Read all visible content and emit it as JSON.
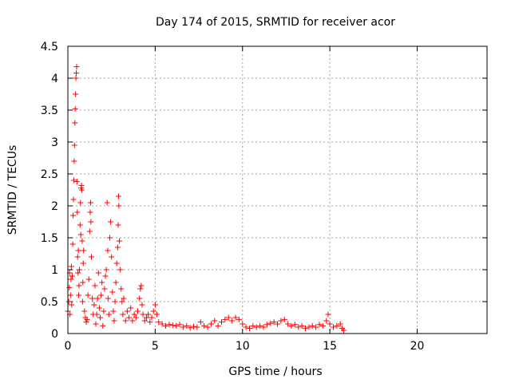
{
  "chart_data": {
    "type": "scatter",
    "title": "Day 174 of 2015, SRMTID for receiver acor",
    "xlabel": "GPS time / hours",
    "ylabel": "SRMTID / TECUs",
    "xlim": [
      0,
      24
    ],
    "ylim": [
      0,
      4.5
    ],
    "xticks": [
      0,
      5,
      10,
      15,
      20
    ],
    "xtick_labels": [
      "0",
      "5",
      "10",
      "15",
      "20"
    ],
    "yticks": [
      0,
      0.5,
      1,
      1.5,
      2,
      2.5,
      3,
      3.5,
      4,
      4.5
    ],
    "ytick_labels": [
      "0",
      "0.5",
      "1",
      "1.5",
      "2",
      "2.5",
      "3",
      "3.5",
      "4",
      "4.5"
    ],
    "grid": true,
    "marker": "plus",
    "marker_color": "#ff0000",
    "series": [
      {
        "name": "SRMTID",
        "points": [
          [
            0.0,
            0.35
          ],
          [
            0.05,
            0.5
          ],
          [
            0.08,
            0.72
          ],
          [
            0.1,
            0.95
          ],
          [
            0.12,
            0.3
          ],
          [
            0.15,
            0.6
          ],
          [
            0.18,
            0.85
          ],
          [
            0.2,
            1.05
          ],
          [
            0.22,
            0.45
          ],
          [
            0.25,
            0.9
          ],
          [
            0.28,
            1.4
          ],
          [
            0.3,
            1.85
          ],
          [
            0.32,
            2.1
          ],
          [
            0.34,
            2.4
          ],
          [
            0.36,
            2.7
          ],
          [
            0.38,
            2.95
          ],
          [
            0.4,
            3.3
          ],
          [
            0.42,
            3.52
          ],
          [
            0.44,
            3.75
          ],
          [
            0.46,
            4.0
          ],
          [
            0.48,
            4.08
          ],
          [
            0.5,
            4.18
          ],
          [
            0.52,
            2.38
          ],
          [
            0.54,
            1.9
          ],
          [
            0.56,
            1.2
          ],
          [
            0.58,
            0.95
          ],
          [
            0.6,
            1.3
          ],
          [
            0.62,
            0.6
          ],
          [
            0.64,
            0.75
          ],
          [
            0.66,
            1.0
          ],
          [
            0.7,
            1.7
          ],
          [
            0.72,
            2.05
          ],
          [
            0.74,
            1.55
          ],
          [
            0.76,
            2.28
          ],
          [
            0.78,
            2.32
          ],
          [
            0.8,
            2.25
          ],
          [
            0.82,
            1.45
          ],
          [
            0.84,
            0.5
          ],
          [
            0.86,
            0.8
          ],
          [
            0.88,
            1.1
          ],
          [
            0.9,
            1.3
          ],
          [
            0.95,
            0.35
          ],
          [
            1.0,
            0.25
          ],
          [
            1.05,
            0.18
          ],
          [
            1.1,
            0.22
          ],
          [
            1.15,
            0.6
          ],
          [
            1.2,
            0.85
          ],
          [
            1.25,
            1.6
          ],
          [
            1.28,
            1.9
          ],
          [
            1.3,
            2.05
          ],
          [
            1.32,
            1.75
          ],
          [
            1.35,
            1.2
          ],
          [
            1.4,
            0.55
          ],
          [
            1.45,
            0.3
          ],
          [
            1.5,
            0.45
          ],
          [
            1.55,
            0.75
          ],
          [
            1.6,
            0.15
          ],
          [
            1.65,
            0.3
          ],
          [
            1.7,
            0.55
          ],
          [
            1.75,
            0.95
          ],
          [
            1.8,
            0.4
          ],
          [
            1.85,
            0.25
          ],
          [
            1.9,
            0.6
          ],
          [
            1.95,
            0.8
          ],
          [
            2.0,
            0.12
          ],
          [
            2.05,
            0.35
          ],
          [
            2.1,
            0.7
          ],
          [
            2.15,
            0.9
          ],
          [
            2.2,
            1.0
          ],
          [
            2.25,
            2.05
          ],
          [
            2.28,
            1.3
          ],
          [
            2.3,
            0.55
          ],
          [
            2.35,
            0.3
          ],
          [
            2.4,
            1.5
          ],
          [
            2.45,
            1.75
          ],
          [
            2.5,
            1.2
          ],
          [
            2.55,
            0.65
          ],
          [
            2.6,
            0.35
          ],
          [
            2.65,
            0.2
          ],
          [
            2.7,
            0.5
          ],
          [
            2.75,
            0.8
          ],
          [
            2.8,
            1.1
          ],
          [
            2.85,
            1.35
          ],
          [
            2.88,
            1.7
          ],
          [
            2.9,
            2.15
          ],
          [
            2.92,
            2.0
          ],
          [
            2.95,
            1.45
          ],
          [
            3.0,
            1.0
          ],
          [
            3.05,
            0.7
          ],
          [
            3.1,
            0.5
          ],
          [
            3.15,
            0.3
          ],
          [
            3.2,
            0.55
          ],
          [
            3.3,
            0.2
          ],
          [
            3.4,
            0.35
          ],
          [
            3.5,
            0.25
          ],
          [
            3.6,
            0.4
          ],
          [
            3.7,
            0.2
          ],
          [
            3.8,
            0.3
          ],
          [
            3.9,
            0.25
          ],
          [
            4.0,
            0.35
          ],
          [
            4.1,
            0.55
          ],
          [
            4.15,
            0.7
          ],
          [
            4.2,
            0.75
          ],
          [
            4.25,
            0.45
          ],
          [
            4.3,
            0.3
          ],
          [
            4.4,
            0.2
          ],
          [
            4.5,
            0.25
          ],
          [
            4.6,
            0.3
          ],
          [
            4.7,
            0.18
          ],
          [
            4.8,
            0.25
          ],
          [
            4.9,
            0.35
          ],
          [
            5.0,
            0.45
          ],
          [
            5.1,
            0.3
          ],
          [
            5.2,
            0.18
          ],
          [
            5.4,
            0.15
          ],
          [
            5.6,
            0.12
          ],
          [
            5.8,
            0.14
          ],
          [
            6.0,
            0.13
          ],
          [
            6.2,
            0.12
          ],
          [
            6.4,
            0.14
          ],
          [
            6.6,
            0.1
          ],
          [
            6.8,
            0.12
          ],
          [
            7.0,
            0.09
          ],
          [
            7.2,
            0.11
          ],
          [
            7.4,
            0.1
          ],
          [
            7.6,
            0.18
          ],
          [
            7.8,
            0.12
          ],
          [
            8.0,
            0.1
          ],
          [
            8.2,
            0.15
          ],
          [
            8.4,
            0.2
          ],
          [
            8.6,
            0.12
          ],
          [
            8.8,
            0.18
          ],
          [
            9.0,
            0.22
          ],
          [
            9.2,
            0.25
          ],
          [
            9.4,
            0.2
          ],
          [
            9.6,
            0.25
          ],
          [
            9.8,
            0.22
          ],
          [
            10.0,
            0.15
          ],
          [
            10.2,
            0.1
          ],
          [
            10.4,
            0.08
          ],
          [
            10.6,
            0.12
          ],
          [
            10.8,
            0.1
          ],
          [
            11.0,
            0.12
          ],
          [
            11.2,
            0.1
          ],
          [
            11.4,
            0.14
          ],
          [
            11.6,
            0.16
          ],
          [
            11.8,
            0.18
          ],
          [
            12.0,
            0.15
          ],
          [
            12.2,
            0.2
          ],
          [
            12.4,
            0.22
          ],
          [
            12.6,
            0.15
          ],
          [
            12.8,
            0.12
          ],
          [
            13.0,
            0.14
          ],
          [
            13.2,
            0.1
          ],
          [
            13.4,
            0.12
          ],
          [
            13.6,
            0.08
          ],
          [
            13.8,
            0.1
          ],
          [
            14.0,
            0.12
          ],
          [
            14.2,
            0.1
          ],
          [
            14.4,
            0.14
          ],
          [
            14.6,
            0.12
          ],
          [
            14.8,
            0.2
          ],
          [
            14.9,
            0.3
          ],
          [
            15.0,
            0.15
          ],
          [
            15.2,
            0.1
          ],
          [
            15.4,
            0.12
          ],
          [
            15.6,
            0.15
          ],
          [
            15.7,
            0.08
          ],
          [
            15.8,
            0.05
          ]
        ]
      }
    ]
  }
}
